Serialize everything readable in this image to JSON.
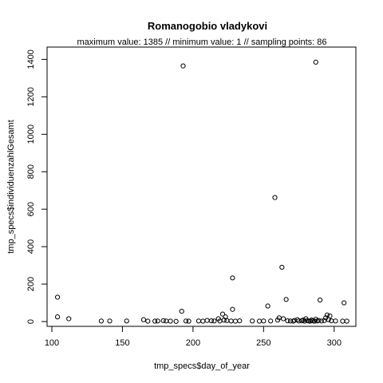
{
  "chart_data": {
    "type": "scatter",
    "title": "Romanogobio vladykovi",
    "subtitle": "maximum value: 1385  //  minimum value: 1  // sampling points: 86",
    "xlabel": "tmp_specs$day_of_year",
    "ylabel": "tmp_specs$individuenzahlGesamt",
    "xlim": [
      100,
      312
    ],
    "ylim": [
      0,
      1440
    ],
    "xticks": [
      100,
      150,
      200,
      250,
      300
    ],
    "yticks": [
      0,
      200,
      400,
      600,
      800,
      1000,
      1200,
      1400
    ],
    "grid": false,
    "points": [
      {
        "x": 104,
        "y": 130
      },
      {
        "x": 104,
        "y": 25
      },
      {
        "x": 112,
        "y": 15
      },
      {
        "x": 135,
        "y": 3
      },
      {
        "x": 141,
        "y": 3
      },
      {
        "x": 153,
        "y": 3
      },
      {
        "x": 165,
        "y": 10
      },
      {
        "x": 168,
        "y": 2
      },
      {
        "x": 173,
        "y": 2
      },
      {
        "x": 175,
        "y": 3
      },
      {
        "x": 179,
        "y": 5
      },
      {
        "x": 181,
        "y": 3
      },
      {
        "x": 184,
        "y": 2
      },
      {
        "x": 188,
        "y": 1
      },
      {
        "x": 192,
        "y": 55
      },
      {
        "x": 193,
        "y": 1365
      },
      {
        "x": 195,
        "y": 3
      },
      {
        "x": 197,
        "y": 2
      },
      {
        "x": 204,
        "y": 3
      },
      {
        "x": 207,
        "y": 2
      },
      {
        "x": 210,
        "y": 6
      },
      {
        "x": 213,
        "y": 4
      },
      {
        "x": 215,
        "y": 3
      },
      {
        "x": 218,
        "y": 15
      },
      {
        "x": 219,
        "y": 3
      },
      {
        "x": 221,
        "y": 40
      },
      {
        "x": 222,
        "y": 8
      },
      {
        "x": 223,
        "y": 25
      },
      {
        "x": 224,
        "y": 5
      },
      {
        "x": 227,
        "y": 3
      },
      {
        "x": 228,
        "y": 233
      },
      {
        "x": 228,
        "y": 65
      },
      {
        "x": 230,
        "y": 2
      },
      {
        "x": 233,
        "y": 4
      },
      {
        "x": 242,
        "y": 3
      },
      {
        "x": 247,
        "y": 2
      },
      {
        "x": 250,
        "y": 3
      },
      {
        "x": 253,
        "y": 83
      },
      {
        "x": 255,
        "y": 3
      },
      {
        "x": 258,
        "y": 662
      },
      {
        "x": 260,
        "y": 8
      },
      {
        "x": 261,
        "y": 20
      },
      {
        "x": 263,
        "y": 290
      },
      {
        "x": 264,
        "y": 15
      },
      {
        "x": 266,
        "y": 118
      },
      {
        "x": 267,
        "y": 4
      },
      {
        "x": 269,
        "y": 3
      },
      {
        "x": 271,
        "y": 2
      },
      {
        "x": 272,
        "y": 6
      },
      {
        "x": 274,
        "y": 10
      },
      {
        "x": 275,
        "y": 3
      },
      {
        "x": 277,
        "y": 4
      },
      {
        "x": 278,
        "y": 8
      },
      {
        "x": 279,
        "y": 2
      },
      {
        "x": 280,
        "y": 15
      },
      {
        "x": 281,
        "y": 5
      },
      {
        "x": 282,
        "y": 3
      },
      {
        "x": 283,
        "y": 2
      },
      {
        "x": 284,
        "y": 8
      },
      {
        "x": 285,
        "y": 4
      },
      {
        "x": 286,
        "y": 2
      },
      {
        "x": 287,
        "y": 1385
      },
      {
        "x": 287,
        "y": 12
      },
      {
        "x": 288,
        "y": 3
      },
      {
        "x": 289,
        "y": 6
      },
      {
        "x": 290,
        "y": 115
      },
      {
        "x": 291,
        "y": 3
      },
      {
        "x": 293,
        "y": 5
      },
      {
        "x": 294,
        "y": 20
      },
      {
        "x": 295,
        "y": 35
      },
      {
        "x": 296,
        "y": 10
      },
      {
        "x": 297,
        "y": 30
      },
      {
        "x": 298,
        "y": 4
      },
      {
        "x": 301,
        "y": 3
      },
      {
        "x": 306,
        "y": 2
      },
      {
        "x": 307,
        "y": 100
      },
      {
        "x": 309,
        "y": 2
      }
    ]
  }
}
